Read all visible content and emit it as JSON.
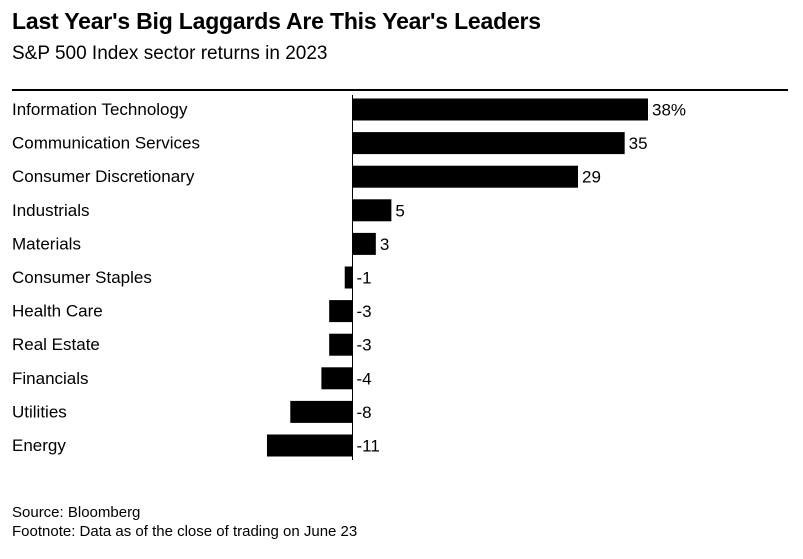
{
  "title": "Last Year's Big Laggards Are This Year's Leaders",
  "subtitle": "S&P 500 Index sector returns in 2023",
  "source": "Source: Bloomberg",
  "footnote": "Footnote: Data as of the close of trading on June 23",
  "colors": {
    "bar": "#000000",
    "text": "#000000",
    "background": "#ffffff"
  },
  "chart_data": {
    "type": "bar",
    "orientation": "horizontal",
    "title": "Last Year's Big Laggards Are This Year's Leaders",
    "subtitle": "S&P 500 Index sector returns in 2023",
    "categories": [
      "Information Technology",
      "Communication Services",
      "Consumer Discretionary",
      "Industrials",
      "Materials",
      "Consumer Staples",
      "Health Care",
      "Real Estate",
      "Financials",
      "Utilities",
      "Energy"
    ],
    "values": [
      38,
      35,
      29,
      5,
      3,
      -1,
      -3,
      -3,
      -4,
      -8,
      -11
    ],
    "value_labels": [
      "38%",
      "35",
      "29",
      "5",
      "3",
      "-1",
      "-3",
      "-3",
      "-4",
      "-8",
      "-11"
    ],
    "unit": "%",
    "xlim": [
      -11,
      38
    ],
    "grid": false,
    "legend": "none"
  }
}
